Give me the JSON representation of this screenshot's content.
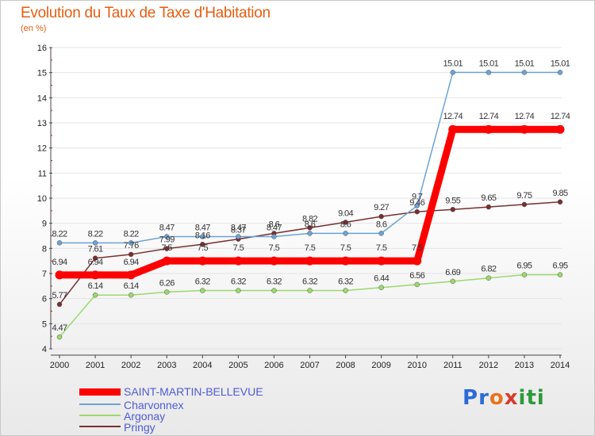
{
  "header": {
    "title": "Evolution du Taux de Taxe d'Habitation",
    "unit": "(en %)"
  },
  "logo": {
    "text": "Proxiti"
  },
  "colors": {
    "saint_martin": "#ff0000",
    "charvonnex": "#6ba3d6",
    "argonay": "#9ad96b",
    "pringy": "#7a2e2e",
    "axis": "#444444",
    "grid": "#e4e4e4",
    "tick_text": "#222222",
    "point_label": "#333333"
  },
  "chart_data": {
    "type": "line",
    "title": "Evolution du Taux de Taxe d'Habitation",
    "ylabel": "(en %)",
    "xlabel": "",
    "x": [
      "2000",
      "2001",
      "2002",
      "2003",
      "2004",
      "2005",
      "2006",
      "2007",
      "2008",
      "2009",
      "2010",
      "2011",
      "2012",
      "2013",
      "2014"
    ],
    "ylim": [
      4,
      16
    ],
    "yticks": [
      "4",
      "5",
      "6",
      "7",
      "8",
      "9",
      "10",
      "11",
      "12",
      "13",
      "14",
      "15",
      "16"
    ],
    "grid": true,
    "legend_position": "bottom-left",
    "series": [
      {
        "name": "SAINT-MARTIN-BELLEVUE",
        "values": [
          6.94,
          6.94,
          6.94,
          7.5,
          7.5,
          7.5,
          7.5,
          7.5,
          7.5,
          7.5,
          7.5,
          12.74,
          12.74,
          12.74,
          12.74
        ],
        "labels": [
          "6.94",
          "6.94",
          "6.94",
          "7.5",
          "7.5",
          "7.5",
          "7.5",
          "7.5",
          "7.5",
          "7.5",
          "7.5",
          "12.74",
          "12.74",
          "12.74",
          "12.74"
        ]
      },
      {
        "name": "Charvonnex",
        "values": [
          8.22,
          8.22,
          8.22,
          8.47,
          8.47,
          8.47,
          8.47,
          8.6,
          8.6,
          8.6,
          9.7,
          15.01,
          15.01,
          15.01,
          15.01
        ],
        "labels": [
          "8.22",
          "8.22",
          "8.22",
          "8.47",
          "8.47",
          "8.47",
          "8.47",
          "8.6",
          "8.6",
          "8.6",
          "9.7",
          "15.01",
          "15.01",
          "15.01",
          "15.01"
        ]
      },
      {
        "name": "Argonay",
        "values": [
          4.47,
          6.14,
          6.14,
          6.26,
          6.32,
          6.32,
          6.32,
          6.32,
          6.32,
          6.44,
          6.56,
          6.69,
          6.82,
          6.95,
          6.95
        ],
        "labels": [
          "4.47",
          "6.14",
          "6.14",
          "6.26",
          "6.32",
          "6.32",
          "6.32",
          "6.32",
          "6.32",
          "6.44",
          "6.56",
          "6.69",
          "6.82",
          "6.95",
          "6.95"
        ]
      },
      {
        "name": "Pringy",
        "values": [
          5.77,
          7.61,
          7.76,
          7.99,
          8.16,
          8.37,
          8.6,
          8.82,
          9.04,
          9.27,
          9.46,
          9.55,
          9.65,
          9.75,
          9.85
        ],
        "labels": [
          "5.77",
          "7.61",
          "7.76",
          "7.99",
          "8.16",
          "8.37",
          "8.6",
          "8.82",
          "9.04",
          "9.27",
          "9.46",
          "9.55",
          "9.65",
          "9.75",
          "9.85"
        ]
      }
    ]
  }
}
